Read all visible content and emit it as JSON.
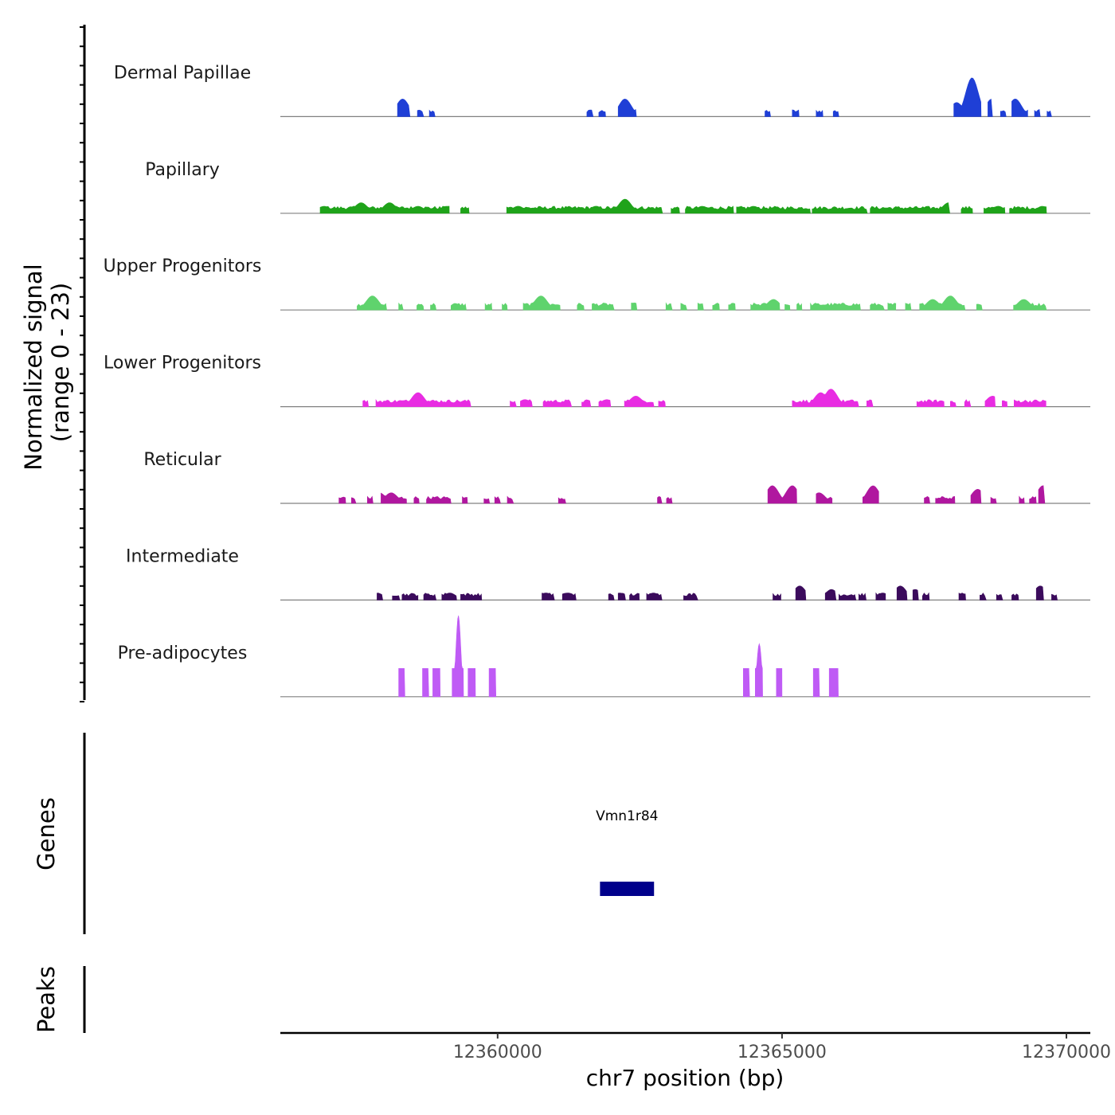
{
  "chart_data": {
    "type": "area",
    "title": "",
    "ylabel": "Normalized signal",
    "ylabel_range": "(range 0 - 23)",
    "ylim": [
      0,
      23
    ],
    "xlabel": "chr7 position (bp)",
    "xlim": [
      12356180,
      12370420
    ],
    "x_ticks": [
      12360000,
      12365000,
      12370000
    ],
    "x_tick_labels": [
      "12360000",
      "12365000",
      "12370000"
    ],
    "series": [
      {
        "name": "Dermal Papillae",
        "color": "#1f3fd6",
        "regions": [
          [
            12358240,
            12358460
          ],
          [
            12358590,
            12358700
          ],
          [
            12358800,
            12358900
          ],
          [
            12361570,
            12361680
          ],
          [
            12361780,
            12361900
          ],
          [
            12362120,
            12362440
          ],
          [
            12364700,
            12364800
          ],
          [
            12365180,
            12365300
          ],
          [
            12365600,
            12365720
          ],
          [
            12365900,
            12366000
          ],
          [
            12368020,
            12368500
          ],
          [
            12368620,
            12368700
          ],
          [
            12368840,
            12368940
          ],
          [
            12369040,
            12369320
          ],
          [
            12369440,
            12369540
          ],
          [
            12369660,
            12369740
          ]
        ],
        "peaks": [
          [
            12358330,
            5
          ],
          [
            12362240,
            5
          ],
          [
            12368070,
            4
          ],
          [
            12368340,
            11
          ],
          [
            12368690,
            5
          ],
          [
            12369100,
            5
          ]
        ]
      },
      {
        "name": "Papillary",
        "color": "#1fa31a",
        "regions": [
          [
            12356880,
            12359150
          ],
          [
            12359350,
            12359500
          ],
          [
            12360160,
            12362900
          ],
          [
            12363050,
            12363200
          ],
          [
            12363300,
            12364150
          ],
          [
            12364200,
            12365500
          ],
          [
            12365530,
            12366500
          ],
          [
            12366550,
            12367950
          ],
          [
            12368150,
            12368350
          ],
          [
            12368550,
            12368920
          ],
          [
            12369000,
            12369650
          ]
        ],
        "peaks": [
          [
            12356950,
            2
          ],
          [
            12357600,
            3
          ],
          [
            12358100,
            3
          ],
          [
            12358600,
            2
          ],
          [
            12359100,
            2
          ],
          [
            12360360,
            2
          ],
          [
            12361730,
            2
          ],
          [
            12362240,
            4
          ],
          [
            12363600,
            2
          ],
          [
            12364500,
            2
          ],
          [
            12367930,
            3
          ],
          [
            12368800,
            2
          ],
          [
            12369580,
            2
          ]
        ]
      },
      {
        "name": "Upper Progenitors",
        "color": "#5fd36d",
        "regions": [
          [
            12357530,
            12358050
          ],
          [
            12358260,
            12358340
          ],
          [
            12358580,
            12358700
          ],
          [
            12358820,
            12358920
          ],
          [
            12359180,
            12359450
          ],
          [
            12359780,
            12359900
          ],
          [
            12360080,
            12360170
          ],
          [
            12360450,
            12361100
          ],
          [
            12361400,
            12361520
          ],
          [
            12361660,
            12362050
          ],
          [
            12362350,
            12362450
          ],
          [
            12362960,
            12363070
          ],
          [
            12363220,
            12363330
          ],
          [
            12363520,
            12363620
          ],
          [
            12363780,
            12363900
          ],
          [
            12364060,
            12364180
          ],
          [
            12364450,
            12364960
          ],
          [
            12365050,
            12365140
          ],
          [
            12365260,
            12365350
          ],
          [
            12365500,
            12366380
          ],
          [
            12366550,
            12366800
          ],
          [
            12366860,
            12367000
          ],
          [
            12367170,
            12367270
          ],
          [
            12367420,
            12368220
          ],
          [
            12368420,
            12368520
          ],
          [
            12369070,
            12369650
          ]
        ],
        "peaks": [
          [
            12357800,
            4
          ],
          [
            12360760,
            4
          ],
          [
            12362400,
            2
          ],
          [
            12364850,
            3
          ],
          [
            12367650,
            3
          ],
          [
            12367960,
            4
          ],
          [
            12369250,
            3
          ]
        ]
      },
      {
        "name": "Lower Progenitors",
        "color": "#e82ce2",
        "regions": [
          [
            12357630,
            12357730
          ],
          [
            12357860,
            12359530
          ],
          [
            12360220,
            12360330
          ],
          [
            12360400,
            12360610
          ],
          [
            12360800,
            12361300
          ],
          [
            12361480,
            12361640
          ],
          [
            12361780,
            12361990
          ],
          [
            12362230,
            12362750
          ],
          [
            12362830,
            12362950
          ],
          [
            12365180,
            12366350
          ],
          [
            12366490,
            12366600
          ],
          [
            12367370,
            12367850
          ],
          [
            12367960,
            12368060
          ],
          [
            12368210,
            12368320
          ],
          [
            12368570,
            12368750
          ],
          [
            12368870,
            12368960
          ],
          [
            12369080,
            12369640
          ]
        ],
        "peaks": [
          [
            12358600,
            4
          ],
          [
            12360480,
            2
          ],
          [
            12361920,
            2
          ],
          [
            12362430,
            3
          ],
          [
            12365680,
            4
          ],
          [
            12365860,
            5
          ],
          [
            12368700,
            3
          ]
        ]
      },
      {
        "name": "Reticular",
        "color": "#b0179f",
        "regions": [
          [
            12357210,
            12357330
          ],
          [
            12357430,
            12357510
          ],
          [
            12357710,
            12357810
          ],
          [
            12357950,
            12358400
          ],
          [
            12358530,
            12358620
          ],
          [
            12358750,
            12359180
          ],
          [
            12359380,
            12359470
          ],
          [
            12359760,
            12359860
          ],
          [
            12359950,
            12360050
          ],
          [
            12360170,
            12360280
          ],
          [
            12361070,
            12361200
          ],
          [
            12362810,
            12362890
          ],
          [
            12362970,
            12363070
          ],
          [
            12364750,
            12365260
          ],
          [
            12365600,
            12365880
          ],
          [
            12366420,
            12366700
          ],
          [
            12367500,
            12367600
          ],
          [
            12367700,
            12368040
          ],
          [
            12368320,
            12368500
          ],
          [
            12368670,
            12368770
          ],
          [
            12369170,
            12369260
          ],
          [
            12369350,
            12369470
          ],
          [
            12369510,
            12369620
          ]
        ],
        "peaks": [
          [
            12357920,
            3
          ],
          [
            12358130,
            3
          ],
          [
            12364830,
            5
          ],
          [
            12365180,
            5
          ],
          [
            12365650,
            3
          ],
          [
            12366600,
            5
          ],
          [
            12368440,
            4
          ],
          [
            12369590,
            5
          ]
        ]
      },
      {
        "name": "Intermediate",
        "color": "#3b0b5c",
        "regions": [
          [
            12357880,
            12357980
          ],
          [
            12358150,
            12358280
          ],
          [
            12358320,
            12358600
          ],
          [
            12358700,
            12358920
          ],
          [
            12359020,
            12359280
          ],
          [
            12359350,
            12359720
          ],
          [
            12360780,
            12361000
          ],
          [
            12361140,
            12361380
          ],
          [
            12361950,
            12362050
          ],
          [
            12362120,
            12362250
          ],
          [
            12362320,
            12362490
          ],
          [
            12362620,
            12362890
          ],
          [
            12363270,
            12363520
          ],
          [
            12364840,
            12364980
          ],
          [
            12365240,
            12365420
          ],
          [
            12365760,
            12365950
          ],
          [
            12366000,
            12366300
          ],
          [
            12366350,
            12366480
          ],
          [
            12366650,
            12366820
          ],
          [
            12367020,
            12367200
          ],
          [
            12367300,
            12367400
          ],
          [
            12367470,
            12367590
          ],
          [
            12368110,
            12368230
          ],
          [
            12368480,
            12368590
          ],
          [
            12368770,
            12368880
          ],
          [
            12369040,
            12369160
          ],
          [
            12369470,
            12369600
          ],
          [
            12369740,
            12369840
          ]
        ],
        "peaks": [
          [
            12359160,
            2
          ],
          [
            12360850,
            2
          ],
          [
            12361240,
            2
          ],
          [
            12362150,
            2
          ],
          [
            12362740,
            2
          ],
          [
            12365310,
            4
          ],
          [
            12365870,
            3
          ],
          [
            12366770,
            2
          ],
          [
            12367080,
            4
          ],
          [
            12367340,
            3
          ],
          [
            12369540,
            4
          ]
        ]
      },
      {
        "name": "Pre-adipocytes",
        "color": "#bf5bf5",
        "regions": [
          [
            12358260,
            12358370
          ],
          [
            12358680,
            12358790
          ],
          [
            12358860,
            12358990
          ],
          [
            12359200,
            12359400
          ],
          [
            12359480,
            12359610
          ],
          [
            12359850,
            12359970
          ],
          [
            12364320,
            12364430
          ],
          [
            12364530,
            12364660
          ],
          [
            12364900,
            12365000
          ],
          [
            12365550,
            12365660
          ],
          [
            12365830,
            12365990
          ]
        ],
        "peaks": [
          [
            12359310,
            23
          ],
          [
            12364600,
            15
          ],
          [
            12365940,
            8
          ]
        ]
      }
    ],
    "genes": [
      {
        "name": "Vmn1r84",
        "start": 12361800,
        "end": 12362750,
        "color": "#00008b"
      }
    ],
    "panels": [
      "Genes",
      "Peaks"
    ]
  }
}
